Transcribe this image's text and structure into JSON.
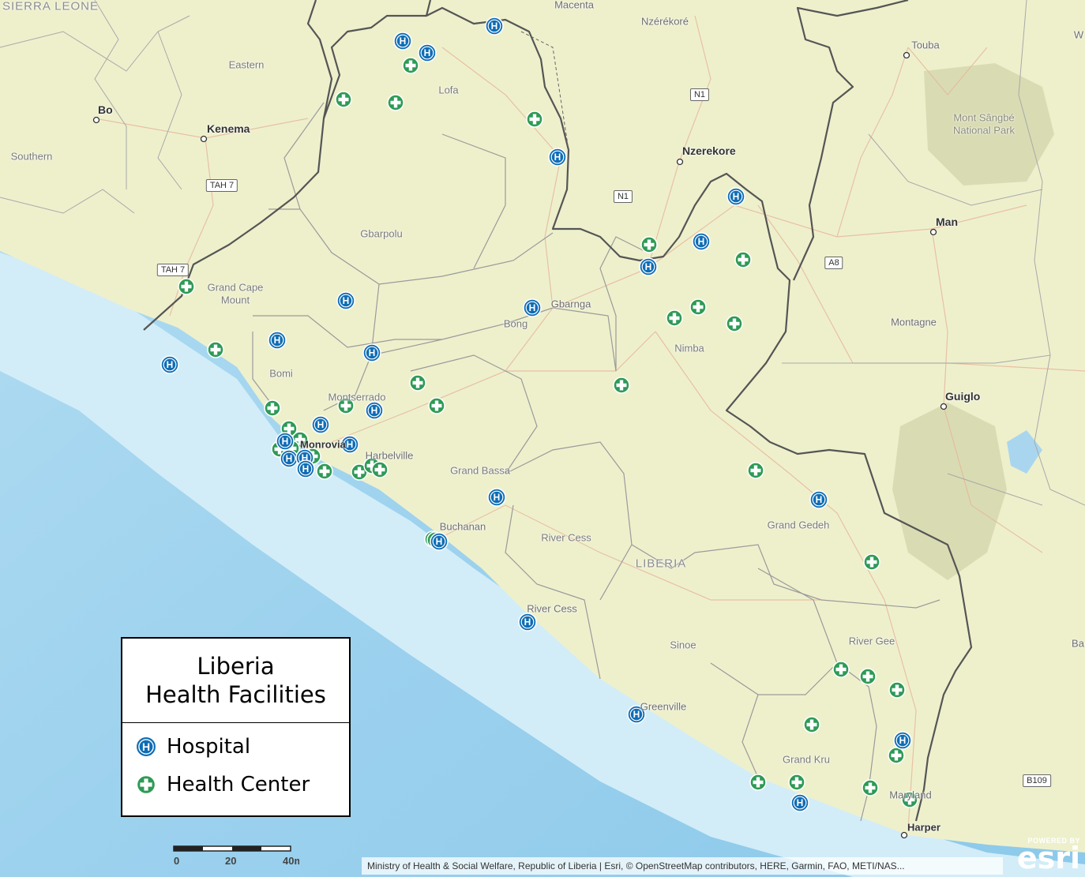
{
  "legend": {
    "title_line1": "Liberia",
    "title_line2": "Health Facilities",
    "items": [
      {
        "label": "Hospital",
        "icon": "hospital-icon"
      },
      {
        "label": "Health Center",
        "icon": "health-center-icon"
      }
    ]
  },
  "colors": {
    "hospital": "#0f6db5",
    "health_center": "#2e9a55",
    "ocean_deep": "#8fcbea",
    "ocean_shallow": "#cbe9f6",
    "land": "#edf0cb",
    "border": "#555555"
  },
  "place_labels": {
    "sierra_leone": "SIERRA LEONE",
    "macenta": "Macenta",
    "nzerekore_top": "Nzérékoré",
    "touba": "Touba",
    "eastern": "Eastern",
    "lofa": "Lofa",
    "bo": "Bo",
    "kenema": "Kenema",
    "southern": "Southern",
    "mont_sangbe": "Mont Sângbé\nNational Park",
    "nzerekore": "Nzerekore",
    "gbarpolu": "Gbarpolu",
    "man": "Man",
    "grand_cape_mount": "Grand Cape\nMount",
    "gbarnga": "Gbarnga",
    "bong": "Bong",
    "montagne": "Montagne",
    "nimba": "Nimba",
    "bomi": "Bomi",
    "guiglo": "Guiglo",
    "montserrado": "Montserrado",
    "monrovia": "Monrovia",
    "harbelville": "Harbelville",
    "grand_bassa": "Grand Bassa",
    "grand_gedeh": "Grand Gedeh",
    "buchanan": "Buchanan",
    "river_cess_county": "River Cess",
    "liberia": "LIBERIA",
    "river_cess_town": "River Cess",
    "river_gee": "River Gee",
    "sinoe": "Sinoe",
    "ba": "Ba",
    "greenville": "Greenville",
    "grand_kru": "Grand Kru",
    "maryland": "Maryland",
    "harper": "Harper",
    "w": "W"
  },
  "road_shields": {
    "n1_north": "N1",
    "tah7_east": "TAH 7",
    "n1_south": "N1",
    "tah7_west": "TAH 7",
    "a8": "A8",
    "b109": "B109"
  },
  "facilities": {
    "hospitals_count": 26,
    "health_centers_count": 40
  },
  "scale": {
    "tick0": "0",
    "tick1": "20",
    "tick2": "40mi"
  },
  "attribution": "Ministry of Health & Social Welfare, Republic of Liberia | Esri, © OpenStreetMap contributors, HERE, Garmin, FAO, METI/NAS...",
  "logo": {
    "powered": "POWERED BY",
    "word": "esri"
  }
}
